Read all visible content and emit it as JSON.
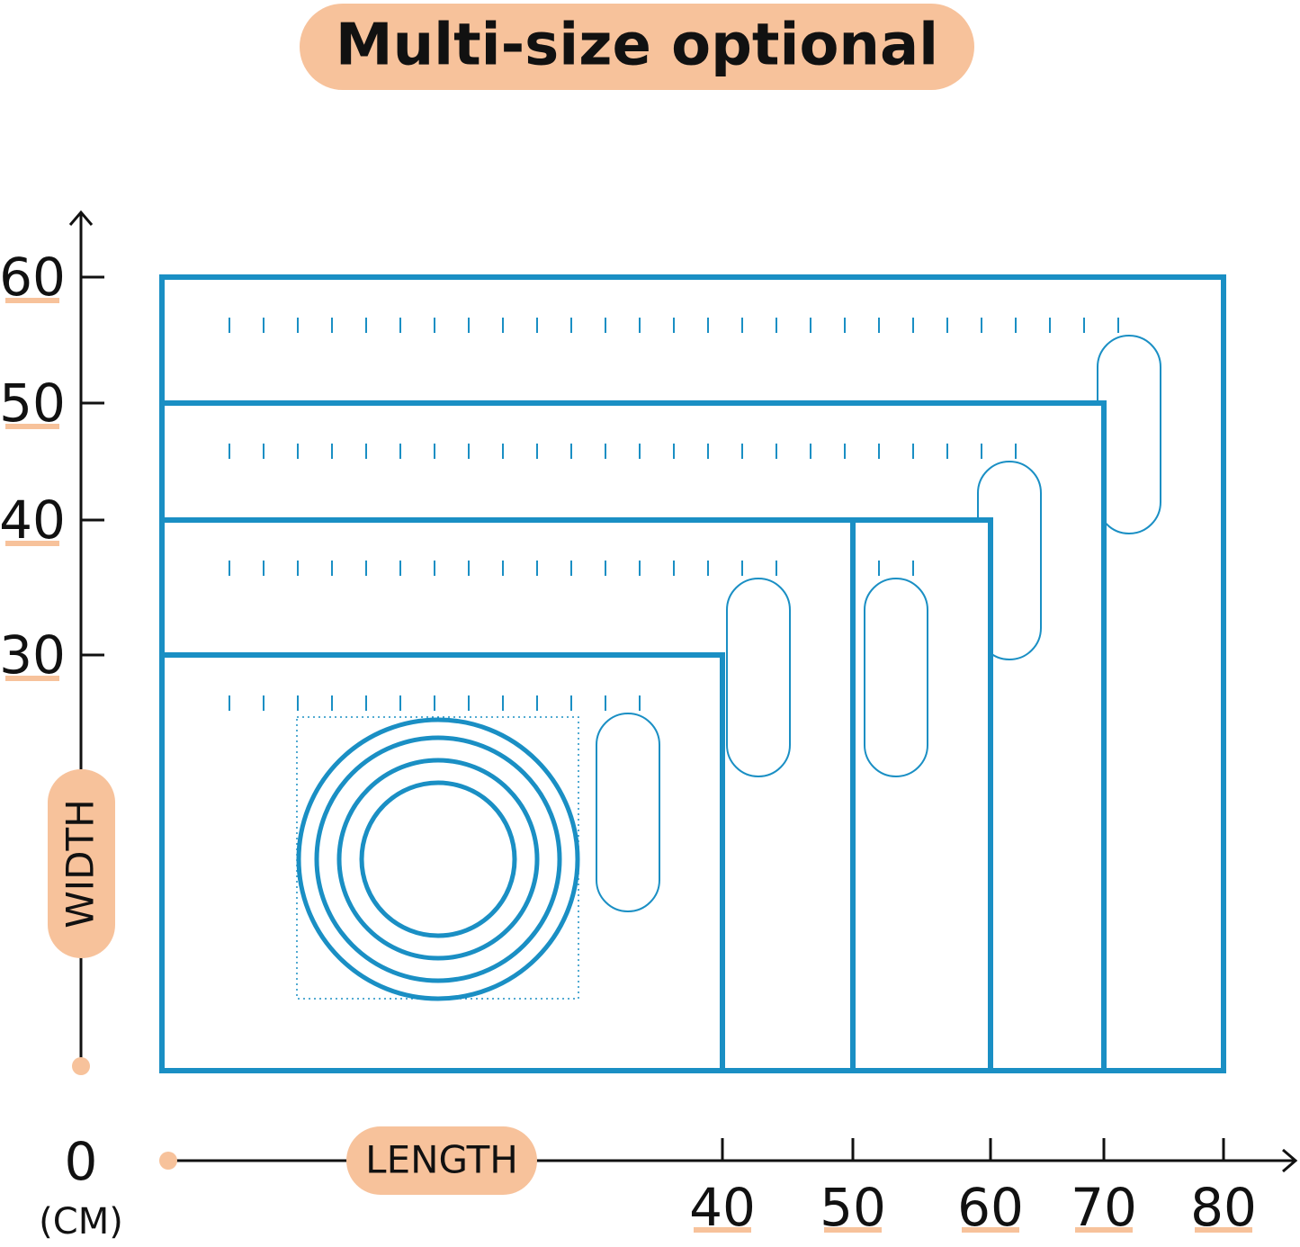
{
  "title": "Multi-size optional",
  "y_axis": {
    "label": "WIDTH",
    "ticks": [
      60,
      50,
      40,
      30
    ]
  },
  "x_axis": {
    "label": "LENGTH",
    "ticks": [
      40,
      50,
      60,
      70,
      80
    ]
  },
  "origin": "0",
  "unit": "(CM)"
}
